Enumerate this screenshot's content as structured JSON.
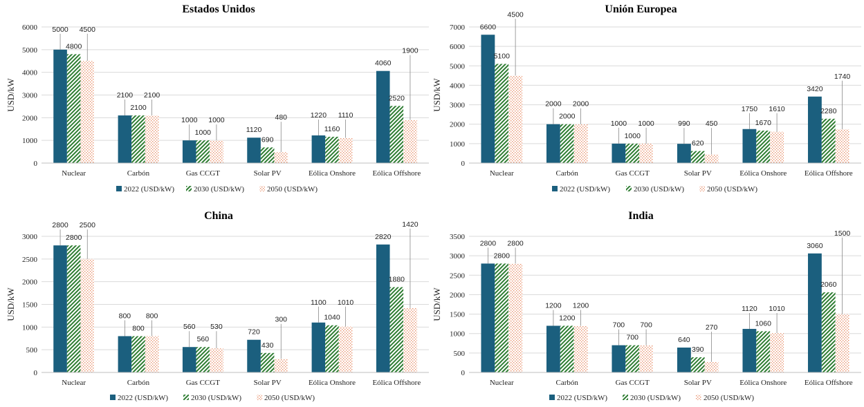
{
  "colors": {
    "s2022": "#1b5f7e",
    "s2030": "#2e7d32",
    "s2050": "#e8906a",
    "grid": "#d9d9d9"
  },
  "chart_data": [
    {
      "type": "bar",
      "title": "Estados Unidos",
      "ylabel": "USD/kW",
      "ylim": [
        0,
        6000
      ],
      "yticks": [
        0,
        1000,
        2000,
        3000,
        4000,
        5000,
        6000
      ],
      "categories": [
        "Nuclear",
        "Carbón",
        "Gas CCGT",
        "Solar PV",
        "Eólica Onshore",
        "Eólica Offshore"
      ],
      "series": [
        {
          "name": "2022 (USD/kW)",
          "values": [
            5000,
            2100,
            1000,
            1120,
            1220,
            4060
          ]
        },
        {
          "name": "2030 (USD/kW)",
          "values": [
            4800,
            2100,
            1000,
            690,
            1160,
            2520
          ]
        },
        {
          "name": "2050 (USD/kW)",
          "values": [
            4500,
            2100,
            1000,
            480,
            1110,
            1900
          ]
        }
      ],
      "grid": true,
      "legend": "bottom"
    },
    {
      "type": "bar",
      "title": "Unión Europea",
      "ylabel": "USD/kW",
      "ylim": [
        0,
        7000
      ],
      "yticks": [
        0,
        1000,
        2000,
        3000,
        4000,
        5000,
        6000,
        7000
      ],
      "categories": [
        "Nuclear",
        "Carbón",
        "Gas CCGT",
        "Solar PV",
        "Eólica Onshore",
        "Eólica Offshore"
      ],
      "series": [
        {
          "name": "2022 (USD/kW)",
          "values": [
            6600,
            2000,
            1000,
            990,
            1750,
            3420
          ]
        },
        {
          "name": "2030 (USD/kW)",
          "values": [
            5100,
            2000,
            1000,
            620,
            1670,
            2280
          ]
        },
        {
          "name": "2050 (USD/kW)",
          "values": [
            4500,
            2000,
            1000,
            450,
            1610,
            1740
          ]
        }
      ],
      "grid": true,
      "legend": "bottom"
    },
    {
      "type": "bar",
      "title": "China",
      "ylabel": "USD/kW",
      "ylim": [
        0,
        3000
      ],
      "yticks": [
        0,
        500,
        1000,
        1500,
        2000,
        2500,
        3000
      ],
      "categories": [
        "Nuclear",
        "Carbón",
        "Gas CCGT",
        "Solar PV",
        "Eólica Onshore",
        "Eólica Offshore"
      ],
      "series": [
        {
          "name": "2022 (USD/kW)",
          "values": [
            2800,
            800,
            560,
            720,
            1100,
            2820
          ]
        },
        {
          "name": "2030 (USD/kW)",
          "values": [
            2800,
            800,
            560,
            430,
            1040,
            1880
          ]
        },
        {
          "name": "2050 (USD/kW)",
          "values": [
            2500,
            800,
            530,
            300,
            1010,
            1420
          ]
        }
      ],
      "grid": true,
      "legend": "bottom"
    },
    {
      "type": "bar",
      "title": "India",
      "ylabel": "USD/kW",
      "ylim": [
        0,
        3500
      ],
      "yticks": [
        0,
        500,
        1000,
        1500,
        2000,
        2500,
        3000,
        3500
      ],
      "categories": [
        "Nuclear",
        "Carbón",
        "Gas CCGT",
        "Solar PV",
        "Eólica Onshore",
        "Eólica Offshore"
      ],
      "series": [
        {
          "name": "2022 (USD/kW)",
          "values": [
            2800,
            1200,
            700,
            640,
            1120,
            3060
          ]
        },
        {
          "name": "2030 (USD/kW)",
          "values": [
            2800,
            1200,
            700,
            390,
            1060,
            2060
          ]
        },
        {
          "name": "2050 (USD/kW)",
          "values": [
            2800,
            1200,
            700,
            270,
            1010,
            1500
          ]
        }
      ],
      "grid": true,
      "legend": "bottom"
    }
  ]
}
